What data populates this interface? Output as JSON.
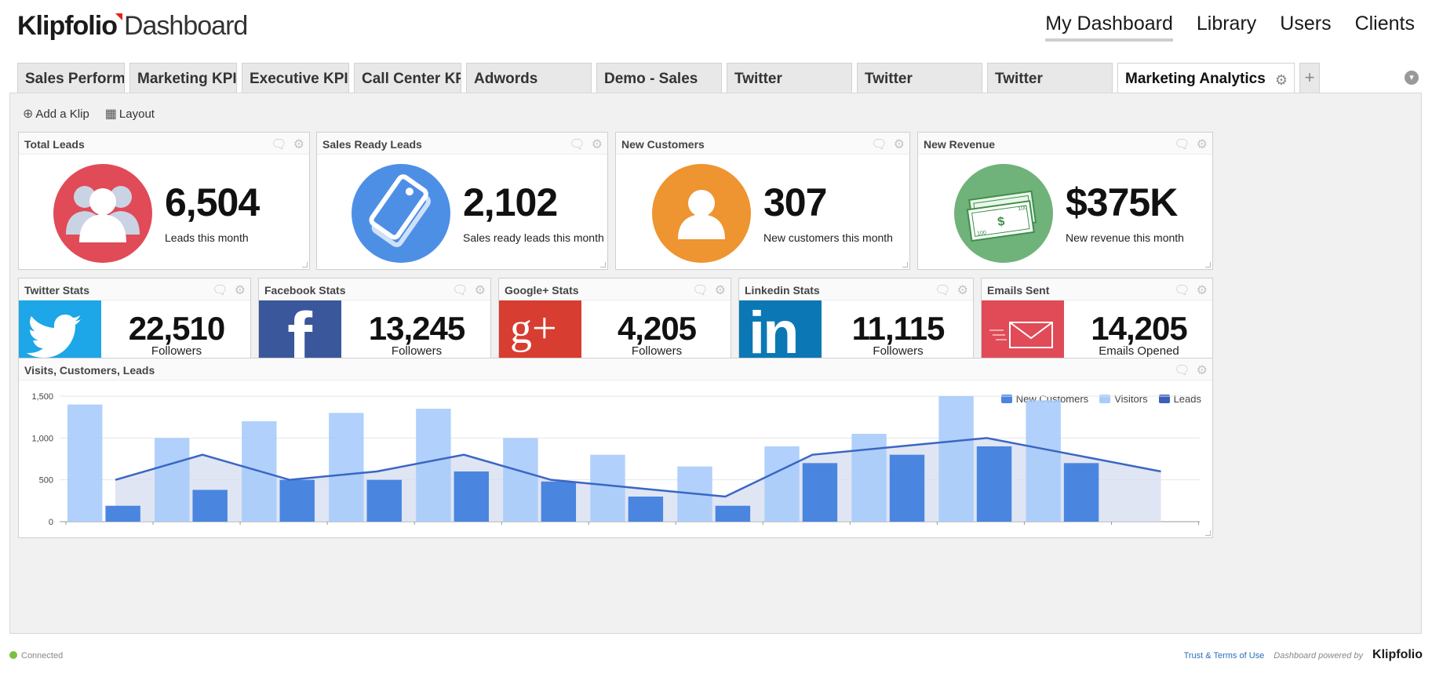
{
  "header": {
    "brand": "Klipfolio",
    "product": "Dashboard",
    "nav": [
      {
        "label": "My Dashboard",
        "active": true
      },
      {
        "label": "Library",
        "active": false
      },
      {
        "label": "Users",
        "active": false
      },
      {
        "label": "Clients",
        "active": false
      }
    ]
  },
  "tabs": [
    {
      "label": "Sales Performan"
    },
    {
      "label": "Marketing KPI E"
    },
    {
      "label": "Executive KPI D"
    },
    {
      "label": "Call Center KPIs"
    },
    {
      "label": "Adwords"
    },
    {
      "label": "Demo - Sales"
    },
    {
      "label": "Twitter"
    },
    {
      "label": "Twitter"
    },
    {
      "label": "Twitter"
    },
    {
      "label": "Marketing Analytics",
      "active": true
    }
  ],
  "tab_controls": {
    "add": "+",
    "menu": "▾"
  },
  "toolbar": {
    "add_klip": "Add a Klip",
    "layout": "Layout"
  },
  "kpis": [
    {
      "title": "Total Leads",
      "value": "6,504",
      "label": "Leads this month",
      "color": "#e04b57",
      "icon": "users-icon"
    },
    {
      "title": "Sales Ready Leads",
      "value": "2,102",
      "label": "Sales ready leads this month",
      "color": "#4e8fe6",
      "icon": "tag-icon"
    },
    {
      "title": "New Customers",
      "value": "307",
      "label": "New customers this month",
      "color": "#ee9430",
      "icon": "user-icon"
    },
    {
      "title": "New Revenue",
      "value": "$375K",
      "label": "New revenue this month",
      "color": "#6fb27a",
      "icon": "money-icon"
    }
  ],
  "money_icon": {
    "note_symbol": "$",
    "denomination": "100"
  },
  "social": [
    {
      "title": "Twitter Stats",
      "value": "22,510",
      "label": "Followers",
      "color": "#1da6e8",
      "icon": "twitter-icon"
    },
    {
      "title": "Facebook Stats",
      "value": "13,245",
      "label": "Followers",
      "color": "#3a579c",
      "icon": "facebook-icon",
      "glyph": "f"
    },
    {
      "title": "Google+ Stats",
      "value": "4,205",
      "label": "Followers",
      "color": "#d73d30",
      "icon": "google-plus-icon",
      "glyph": "g+"
    },
    {
      "title": "Linkedin Stats",
      "value": "11,115",
      "label": "Followers",
      "color": "#0b78b5",
      "icon": "linkedin-icon",
      "glyph": "in"
    },
    {
      "title": "Emails Sent",
      "value": "14,205",
      "label": "Emails Opened",
      "color": "#e04b57",
      "icon": "email-icon"
    }
  ],
  "chart_klip": {
    "title": "Visits, Customers, Leads"
  },
  "chart_data": {
    "type": "bar",
    "categories": [
      "",
      "",
      "",
      "",
      "",
      "",
      "",
      "",
      "",
      "",
      "",
      "",
      ""
    ],
    "series": [
      {
        "name": "Visitors",
        "kind": "bar",
        "color": "#a9cbfb",
        "values": [
          1400,
          1000,
          1200,
          1300,
          1350,
          1000,
          800,
          660,
          900,
          1050,
          1500,
          1450,
          null
        ]
      },
      {
        "name": "Leads",
        "kind": "bar",
        "color": "#4a85e0",
        "values": [
          190,
          380,
          500,
          500,
          600,
          480,
          300,
          190,
          700,
          800,
          900,
          700,
          null
        ]
      },
      {
        "name": "New Customers",
        "kind": "line-area",
        "color": "#3a66c4",
        "values": [
          500,
          800,
          500,
          600,
          800,
          500,
          400,
          300,
          800,
          900,
          1000,
          800,
          600
        ]
      }
    ],
    "legend": [
      {
        "name": "New Customers",
        "color": "#4a85e0"
      },
      {
        "name": "Visitors",
        "color": "#a9cbfb"
      },
      {
        "name": "Leads",
        "color": "#3a5fb8"
      }
    ],
    "yticks": [
      "0",
      "500",
      "1,000",
      "1,500"
    ],
    "ylim": [
      0,
      1500
    ],
    "legend_position": "top-right",
    "grid": true
  },
  "footer": {
    "status": "Connected",
    "terms": "Trust & Terms of Use",
    "powered": "Dashboard powered by",
    "powered_brand": "Klipfolio"
  }
}
